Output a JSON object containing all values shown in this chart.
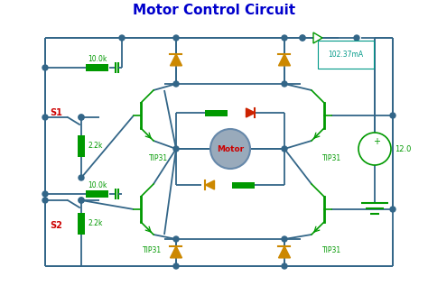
{
  "title": "Motor Control Circuit",
  "title_color": "#0000CC",
  "title_fontsize": 11,
  "bg_color": "#FFFFFF",
  "wire_color": "#336688",
  "component_color": "#009900",
  "red_label_color": "#CC0000",
  "s1_label": "S1",
  "s2_label": "S2",
  "motor_label": "Motor",
  "tip31_label": "TIP31",
  "r1_label": "10.0k",
  "r2_label": "2.2k",
  "r3_label": "10.0k",
  "r4_label": "2.2k",
  "v_label": "12.0",
  "current_label": "102.37mA",
  "diode_orange": "#CC8800",
  "diode_red": "#CC2200",
  "motor_fill": "#8899BB",
  "ammeter_color": "#009988"
}
